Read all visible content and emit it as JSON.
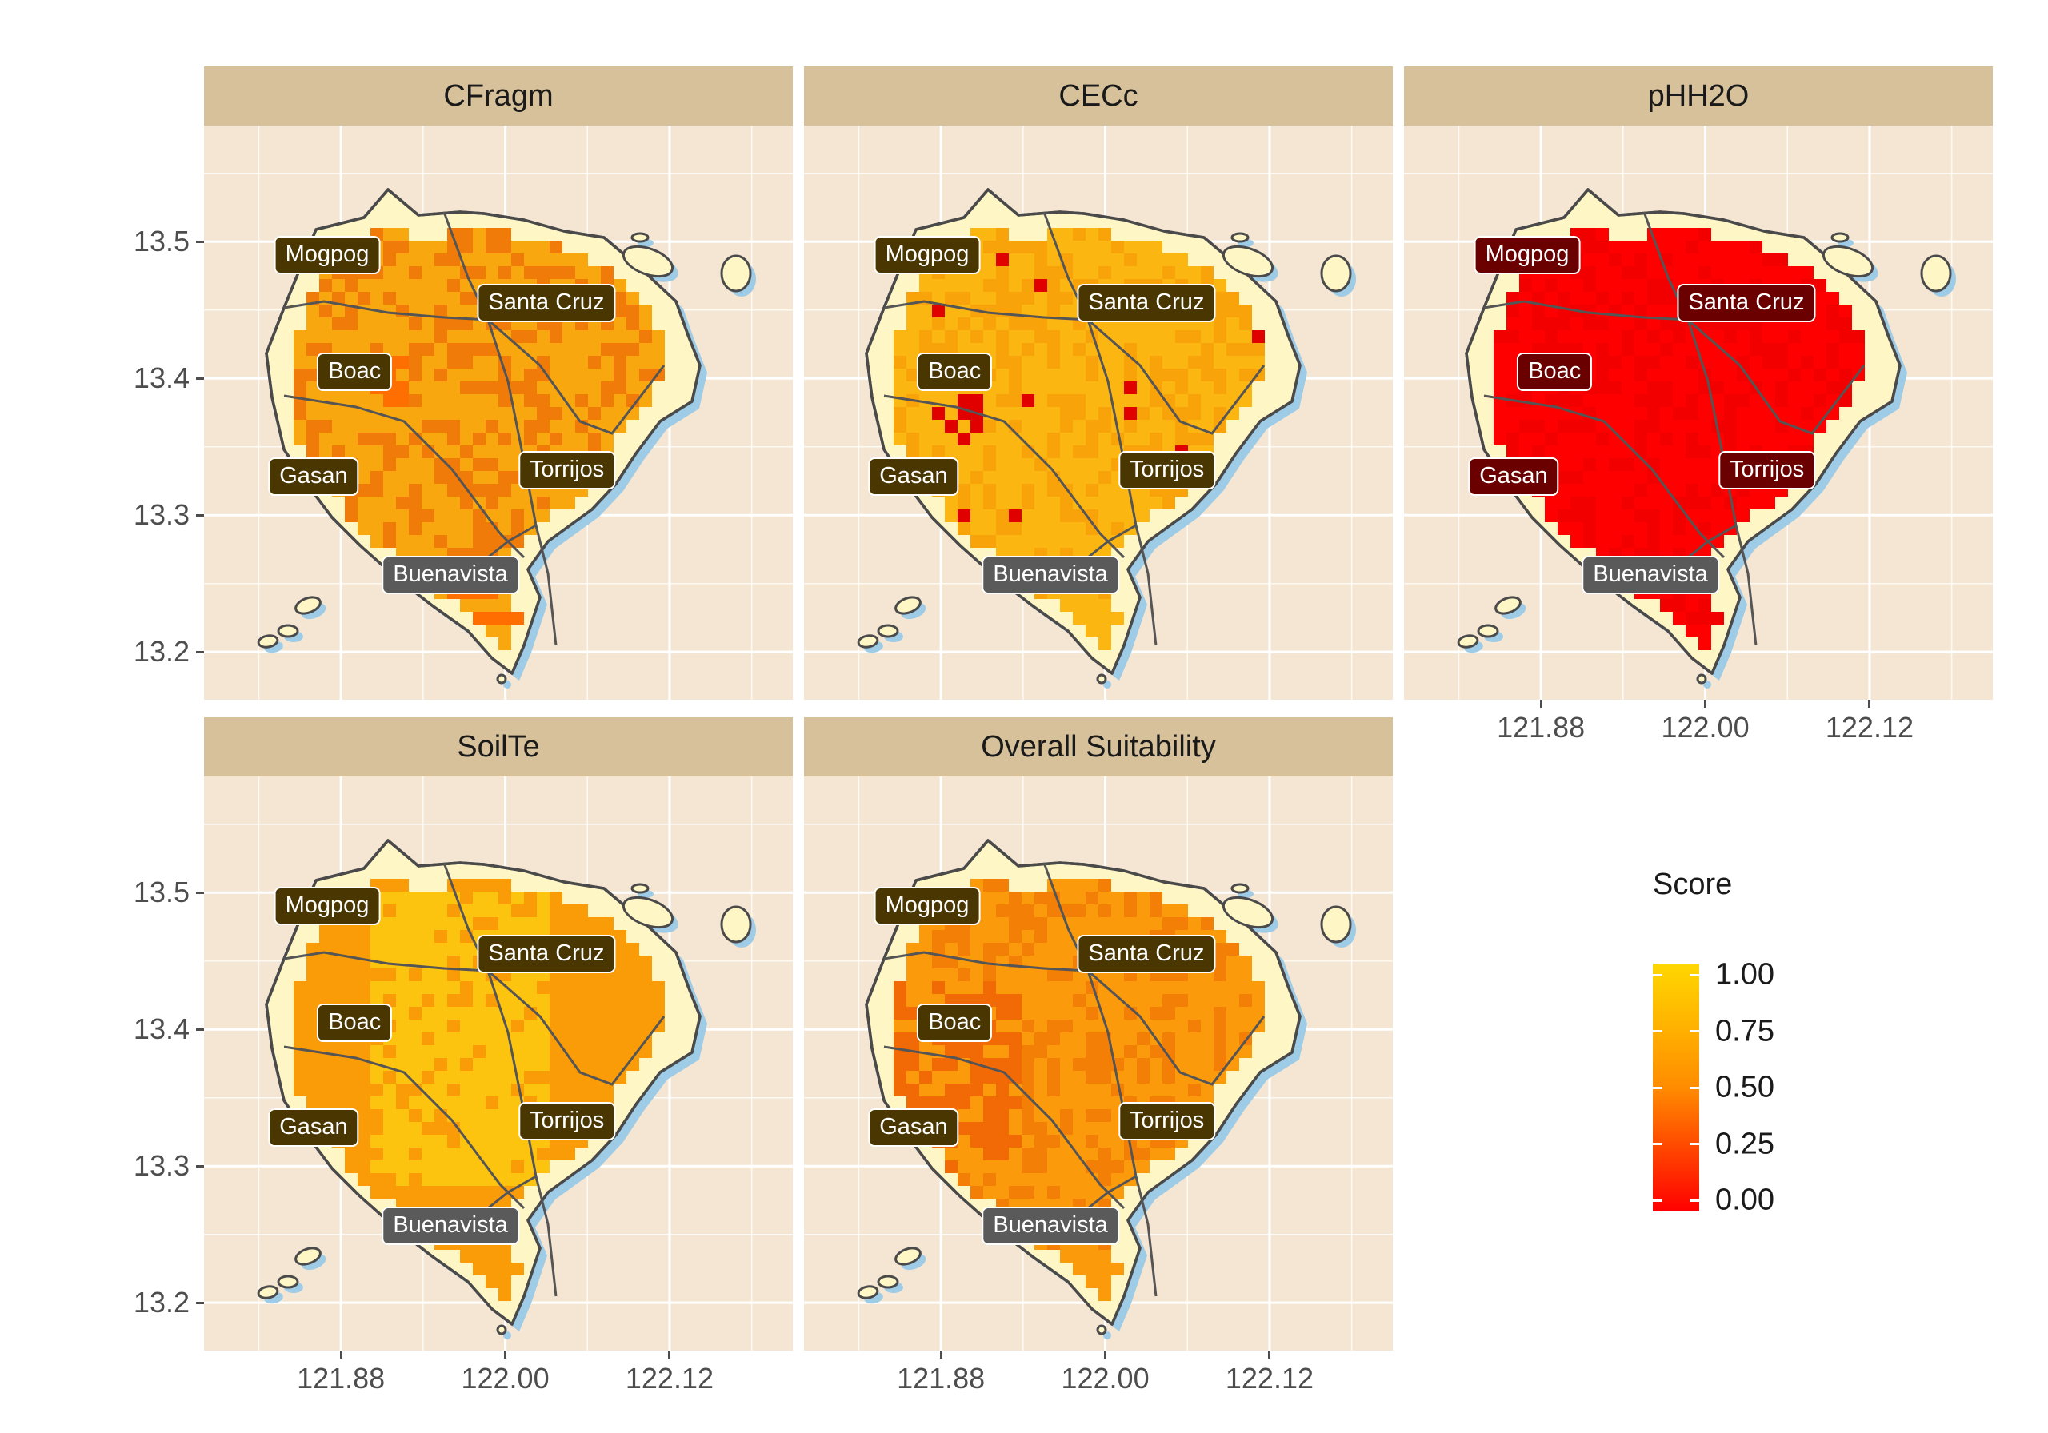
{
  "panels": [
    {
      "title": "CFragm",
      "palette": {
        "base": "#f9a70e",
        "dark": "#f07b08",
        "accent": "#ff6e00"
      },
      "hot": "south",
      "label_fill": "#4a3600",
      "show_y_axis": true,
      "show_x_axis": false
    },
    {
      "title": "CECc",
      "palette": {
        "base": "#fbb612",
        "dark": "#f9a30b",
        "accent": "#e00000"
      },
      "hot": "patches",
      "label_fill": "#4a3600",
      "show_y_axis": false,
      "show_x_axis": false
    },
    {
      "title": "pHH2O",
      "palette": {
        "base": "#ff0000",
        "dark": "#f20000",
        "accent": "#ff0000"
      },
      "hot": "none",
      "label_fill": "#6a0000",
      "show_y_axis": false,
      "show_x_axis": true
    },
    {
      "title": "SoilTe",
      "palette": {
        "base": "#fcc40f",
        "dark": "#fa9c08",
        "accent": "#fa9c08"
      },
      "hot": "soil",
      "label_fill": "#4a3600",
      "show_y_axis": true,
      "show_x_axis": true
    },
    {
      "title": "Overall Suitability",
      "palette": {
        "base": "#fb9a0a",
        "dark": "#f47f06",
        "accent": "#f26a05"
      },
      "hot": "overall",
      "label_fill": "#4a3600",
      "show_y_axis": false,
      "show_x_axis": true
    }
  ],
  "municipalities": [
    {
      "name": "Mogpog",
      "lon": 121.87,
      "lat": 13.49
    },
    {
      "name": "Santa Cruz",
      "lon": 122.03,
      "lat": 13.455
    },
    {
      "name": "Boac",
      "lon": 121.89,
      "lat": 13.405
    },
    {
      "name": "Gasan",
      "lon": 121.86,
      "lat": 13.328
    },
    {
      "name": "Torrijos",
      "lon": 122.045,
      "lat": 13.333
    },
    {
      "name": "Buenavista",
      "lon": 121.96,
      "lat": 13.256
    }
  ],
  "axes": {
    "y_ticks": [
      "13.5",
      "13.4",
      "13.3",
      "13.2"
    ],
    "y_values": [
      13.5,
      13.4,
      13.3,
      13.2
    ],
    "x_ticks": [
      "121.88",
      "122.00",
      "122.12"
    ],
    "x_values": [
      121.88,
      122.0,
      122.12
    ],
    "lon_range": [
      121.78,
      122.21
    ],
    "lat_range": [
      13.165,
      13.585
    ]
  },
  "legend": {
    "title": "Score",
    "labels": [
      "1.00",
      "0.75",
      "0.50",
      "0.25",
      "0.00"
    ],
    "colors": [
      "#ffd700",
      "#ffb300",
      "#ff8c00",
      "#ff4500",
      "#ff0000"
    ]
  },
  "colors": {
    "panel_bg": "#f5e6d3",
    "strip_bg": "#d6c19a",
    "island_fill": "#fff6c6",
    "island_stroke": "#4a4a4a",
    "shadow": "#9ecbe6",
    "grid": "#ffffff"
  }
}
